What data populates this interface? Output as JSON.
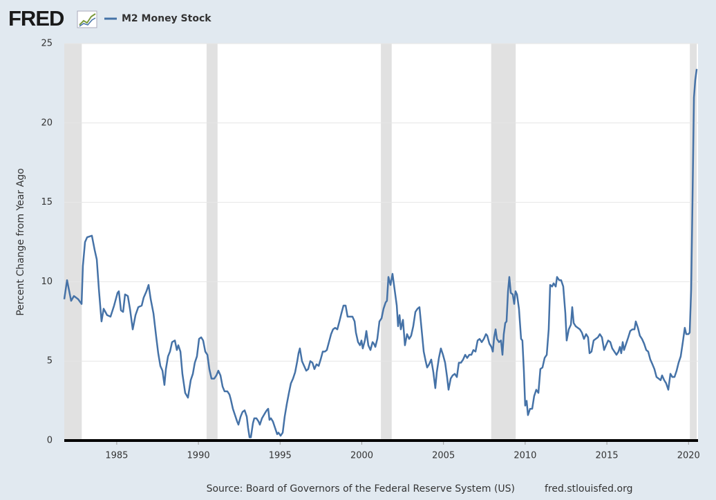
{
  "logo": "FRED",
  "chart_data": {
    "type": "line",
    "y_label": "Percent Change from Year Ago",
    "source": "Source: Board of Governors of the Federal Reserve System (US)",
    "site": "fred.stlouisfed.org",
    "xlim": [
      1981.79,
      2020.58
    ],
    "ylim": [
      0,
      25
    ],
    "xticks": [
      1985,
      1990,
      1995,
      2000,
      2005,
      2010,
      2015,
      2020
    ],
    "yticks": [
      0,
      5,
      10,
      15,
      20,
      25
    ],
    "grid": true,
    "recession_color": "#e1e1e1",
    "recessions": [
      [
        1981.79,
        1982.86
      ],
      [
        1990.5,
        1991.17
      ],
      [
        2001.17,
        2001.83
      ],
      [
        2007.92,
        2009.42
      ],
      [
        2020.08,
        2020.5
      ]
    ],
    "x": [
      1981.79,
      1981.96,
      1982.21,
      1982.38,
      1982.64,
      1982.85,
      1982.93,
      1983.06,
      1983.19,
      1983.48,
      1983.65,
      1983.78,
      1983.91,
      1984.07,
      1984.2,
      1984.41,
      1984.62,
      1984.84,
      1985.05,
      1985.13,
      1985.26,
      1985.39,
      1985.51,
      1985.68,
      1985.81,
      1985.98,
      1986.15,
      1986.32,
      1986.53,
      1986.65,
      1986.82,
      1986.95,
      1987.08,
      1987.25,
      1987.42,
      1987.54,
      1987.67,
      1987.8,
      1987.92,
      1988.01,
      1988.14,
      1988.26,
      1988.39,
      1988.56,
      1988.68,
      1988.77,
      1988.9,
      1989.02,
      1989.19,
      1989.36,
      1989.53,
      1989.66,
      1989.78,
      1989.91,
      1990.04,
      1990.17,
      1990.29,
      1990.42,
      1990.55,
      1990.67,
      1990.8,
      1990.97,
      1991.1,
      1991.22,
      1991.35,
      1991.48,
      1991.6,
      1991.77,
      1991.9,
      1991.98,
      1992.11,
      1992.24,
      1992.37,
      1992.45,
      1992.58,
      1992.7,
      1992.83,
      1992.96,
      1993.04,
      1993.13,
      1993.21,
      1993.34,
      1993.42,
      1993.55,
      1993.68,
      1993.76,
      1993.89,
      1994.06,
      1994.18,
      1994.27,
      1994.35,
      1994.44,
      1994.56,
      1994.69,
      1994.82,
      1994.9,
      1995.03,
      1995.16,
      1995.28,
      1995.41,
      1995.54,
      1995.66,
      1995.79,
      1995.92,
      1996.05,
      1996.13,
      1996.21,
      1996.34,
      1996.47,
      1996.6,
      1996.72,
      1996.85,
      1996.98,
      1997.1,
      1997.23,
      1997.36,
      1997.48,
      1997.61,
      1997.74,
      1997.86,
      1997.99,
      1998.12,
      1998.24,
      1998.37,
      1998.5,
      1998.63,
      1998.75,
      1998.88,
      1999.01,
      1999.13,
      1999.3,
      1999.43,
      1999.56,
      1999.64,
      1999.77,
      1999.89,
      1999.98,
      2000.06,
      2000.19,
      2000.28,
      2000.4,
      2000.53,
      2000.66,
      2000.74,
      2000.83,
      2000.95,
      2001.08,
      2001.21,
      2001.33,
      2001.46,
      2001.54,
      2001.63,
      2001.76,
      2001.88,
      2002.01,
      2002.14,
      2002.22,
      2002.31,
      2002.39,
      2002.52,
      2002.64,
      2002.77,
      2002.9,
      2003.02,
      2003.15,
      2003.28,
      2003.41,
      2003.53,
      2003.66,
      2003.79,
      2003.91,
      2004.0,
      2004.12,
      2004.25,
      2004.38,
      2004.5,
      2004.59,
      2004.72,
      2004.84,
      2004.97,
      2005.1,
      2005.22,
      2005.31,
      2005.44,
      2005.56,
      2005.69,
      2005.82,
      2005.94,
      2006.07,
      2006.2,
      2006.33,
      2006.45,
      2006.58,
      2006.71,
      2006.83,
      2006.96,
      2007.09,
      2007.21,
      2007.34,
      2007.47,
      2007.6,
      2007.68,
      2007.81,
      2007.93,
      2008.02,
      2008.1,
      2008.19,
      2008.27,
      2008.4,
      2008.52,
      2008.61,
      2008.69,
      2008.78,
      2008.86,
      2008.95,
      2009.03,
      2009.12,
      2009.24,
      2009.33,
      2009.41,
      2009.5,
      2009.62,
      2009.75,
      2009.83,
      2009.92,
      2010.0,
      2010.09,
      2010.17,
      2010.3,
      2010.43,
      2010.55,
      2010.68,
      2010.81,
      2010.93,
      2011.06,
      2011.19,
      2011.32,
      2011.44,
      2011.53,
      2011.65,
      2011.74,
      2011.87,
      2011.95,
      2012.08,
      2012.2,
      2012.33,
      2012.46,
      2012.54,
      2012.67,
      2012.8,
      2012.88,
      2012.97,
      2013.09,
      2013.22,
      2013.35,
      2013.47,
      2013.6,
      2013.73,
      2013.85,
      2013.94,
      2014.06,
      2014.19,
      2014.32,
      2014.45,
      2014.57,
      2014.7,
      2014.83,
      2014.95,
      2015.08,
      2015.21,
      2015.33,
      2015.46,
      2015.59,
      2015.71,
      2015.8,
      2015.88,
      2015.97,
      2016.05,
      2016.18,
      2016.31,
      2016.43,
      2016.56,
      2016.69,
      2016.77,
      2016.9,
      2017.02,
      2017.15,
      2017.28,
      2017.41,
      2017.53,
      2017.66,
      2017.79,
      2017.91,
      2018.04,
      2018.17,
      2018.29,
      2018.38,
      2018.51,
      2018.63,
      2018.76,
      2018.89,
      2019.01,
      2019.14,
      2019.27,
      2019.39,
      2019.52,
      2019.65,
      2019.77,
      2019.86,
      2019.99,
      2020.07,
      2020.16,
      2020.24,
      2020.33,
      2020.41,
      2020.5
    ],
    "series": [
      {
        "name": "M2 Money Stock",
        "color": "#4572a7",
        "values": [
          8.9,
          10.1,
          8.8,
          9.1,
          8.9,
          8.6,
          11.0,
          12.5,
          12.8,
          12.9,
          12.0,
          11.4,
          9.5,
          7.5,
          8.3,
          7.9,
          7.8,
          8.5,
          9.3,
          9.4,
          8.2,
          8.1,
          9.2,
          9.1,
          8.3,
          7.0,
          7.9,
          8.4,
          8.5,
          9.0,
          9.4,
          9.8,
          8.9,
          8.0,
          6.5,
          5.5,
          4.7,
          4.4,
          3.5,
          4.5,
          5.3,
          5.6,
          6.2,
          6.3,
          5.7,
          6.0,
          5.6,
          4.2,
          3.0,
          2.7,
          3.8,
          4.2,
          4.9,
          5.3,
          6.4,
          6.5,
          6.3,
          5.6,
          5.4,
          4.5,
          3.9,
          3.9,
          4.1,
          4.4,
          4.1,
          3.4,
          3.1,
          3.1,
          2.9,
          2.6,
          2.0,
          1.6,
          1.2,
          1.0,
          1.5,
          1.8,
          1.9,
          1.5,
          0.8,
          0.2,
          0.2,
          1.1,
          1.4,
          1.4,
          1.2,
          1.0,
          1.4,
          1.7,
          1.9,
          2.0,
          1.3,
          1.4,
          1.2,
          0.8,
          0.4,
          0.5,
          0.3,
          0.5,
          1.5,
          2.3,
          3.0,
          3.6,
          3.9,
          4.3,
          5.0,
          5.5,
          5.8,
          5.0,
          4.7,
          4.4,
          4.5,
          5.0,
          4.9,
          4.5,
          4.8,
          4.7,
          5.1,
          5.6,
          5.6,
          5.7,
          6.2,
          6.7,
          7.0,
          7.1,
          7.0,
          7.5,
          8.0,
          8.5,
          8.5,
          7.8,
          7.8,
          7.8,
          7.5,
          6.8,
          6.2,
          6.0,
          6.3,
          5.8,
          6.3,
          6.9,
          6.0,
          5.7,
          6.2,
          6.1,
          5.9,
          6.4,
          7.5,
          7.7,
          8.3,
          8.7,
          8.8,
          10.3,
          9.8,
          10.5,
          9.5,
          8.5,
          7.2,
          7.9,
          7.0,
          7.6,
          6.0,
          6.7,
          6.4,
          6.6,
          7.2,
          8.1,
          8.3,
          8.4,
          7.0,
          5.6,
          5.0,
          4.6,
          4.8,
          5.1,
          4.3,
          3.3,
          4.3,
          5.2,
          5.8,
          5.4,
          4.9,
          4.0,
          3.2,
          3.9,
          4.1,
          4.2,
          4.0,
          4.9,
          4.9,
          5.1,
          5.4,
          5.2,
          5.4,
          5.4,
          5.7,
          5.6,
          6.3,
          6.4,
          6.2,
          6.4,
          6.7,
          6.6,
          6.1,
          5.9,
          5.6,
          6.5,
          7.0,
          6.4,
          6.2,
          6.3,
          5.4,
          6.7,
          7.4,
          7.5,
          9.4,
          10.3,
          9.3,
          9.2,
          8.6,
          9.4,
          9.2,
          8.3,
          6.4,
          6.3,
          4.4,
          2.2,
          2.5,
          1.6,
          2.0,
          2.0,
          2.8,
          3.2,
          3.0,
          4.5,
          4.6,
          5.2,
          5.4,
          7.0,
          9.8,
          9.7,
          9.9,
          9.7,
          10.3,
          10.1,
          10.1,
          9.7,
          8.0,
          6.3,
          7.0,
          7.3,
          8.4,
          7.4,
          7.2,
          7.1,
          7.0,
          6.8,
          6.4,
          6.7,
          6.5,
          5.5,
          5.6,
          6.3,
          6.4,
          6.5,
          6.7,
          6.5,
          5.7,
          6.0,
          6.3,
          6.2,
          5.8,
          5.6,
          5.4,
          5.6,
          5.9,
          5.5,
          6.2,
          5.7,
          6.1,
          6.5,
          6.9,
          7.0,
          7.0,
          7.5,
          7.1,
          6.6,
          6.4,
          6.1,
          5.7,
          5.6,
          5.1,
          4.8,
          4.5,
          4.0,
          3.9,
          3.8,
          4.1,
          3.8,
          3.6,
          3.2,
          4.2,
          4.0,
          4.0,
          4.4,
          4.9,
          5.3,
          6.2,
          7.1,
          6.7,
          6.7,
          6.8,
          9.5,
          15.0,
          21.6,
          22.7,
          23.4
        ]
      }
    ]
  }
}
